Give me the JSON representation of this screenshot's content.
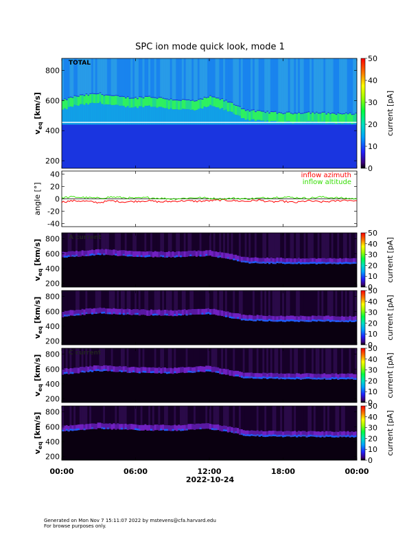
{
  "title": "SPC ion mode quick look, mode 1",
  "chart_data": [
    {
      "type": "heatmap",
      "panel_label": "TOTAL",
      "ylabel_main": "v",
      "ylabel_sub": "eq",
      "ylabel_unit": " [km/s]",
      "ylim": [
        150,
        880
      ],
      "y_ticks": [
        200,
        400,
        600,
        800
      ],
      "colorbar": {
        "label": "current [pA]",
        "range": [
          0,
          50
        ],
        "ticks": [
          0,
          10,
          20,
          30,
          40,
          50
        ]
      },
      "peak_velocity_profile": [
        {
          "hour": 0,
          "v": 560
        },
        {
          "hour": 1,
          "v": 590
        },
        {
          "hour": 2,
          "v": 600
        },
        {
          "hour": 3,
          "v": 610
        },
        {
          "hour": 4,
          "v": 595
        },
        {
          "hour": 5,
          "v": 585
        },
        {
          "hour": 6,
          "v": 580
        },
        {
          "hour": 7,
          "v": 590
        },
        {
          "hour": 8,
          "v": 580
        },
        {
          "hour": 9,
          "v": 570
        },
        {
          "hour": 10,
          "v": 565
        },
        {
          "hour": 11,
          "v": 560
        },
        {
          "hour": 12,
          "v": 590
        },
        {
          "hour": 13,
          "v": 570
        },
        {
          "hour": 14,
          "v": 540
        },
        {
          "hour": 15,
          "v": 500
        },
        {
          "hour": 16,
          "v": 490
        },
        {
          "hour": 17,
          "v": 485
        },
        {
          "hour": 18,
          "v": 480
        },
        {
          "hour": 19,
          "v": 480
        },
        {
          "hour": 20,
          "v": 485
        },
        {
          "hour": 21,
          "v": 480
        },
        {
          "hour": 22,
          "v": 478
        },
        {
          "hour": 23,
          "v": 475
        },
        {
          "hour": 24,
          "v": 475
        }
      ],
      "gap_line_v": 455
    },
    {
      "type": "line",
      "ylabel": "angle [°]",
      "ylim": [
        -45,
        45
      ],
      "y_ticks": [
        -40,
        -20,
        0,
        20,
        40
      ],
      "legend": [
        "inflow azimuth",
        "inflow altitude"
      ],
      "series": [
        {
          "name": "inflow azimuth",
          "color": "#ff0000",
          "values": [
            {
              "hour": 0,
              "angle": -5
            },
            {
              "hour": 1,
              "angle": -3
            },
            {
              "hour": 2,
              "angle": -4
            },
            {
              "hour": 3,
              "angle": -6
            },
            {
              "hour": 4,
              "angle": -3
            },
            {
              "hour": 5,
              "angle": -5
            },
            {
              "hour": 6,
              "angle": -4
            },
            {
              "hour": 7,
              "angle": -3
            },
            {
              "hour": 8,
              "angle": -5
            },
            {
              "hour": 9,
              "angle": -4
            },
            {
              "hour": 10,
              "angle": -3
            },
            {
              "hour": 11,
              "angle": -4
            },
            {
              "hour": 12,
              "angle": -3
            },
            {
              "hour": 13,
              "angle": -2
            },
            {
              "hour": 14,
              "angle": -3
            },
            {
              "hour": 15,
              "angle": -4
            },
            {
              "hour": 16,
              "angle": -2
            },
            {
              "hour": 17,
              "angle": -5
            },
            {
              "hour": 18,
              "angle": -4
            },
            {
              "hour": 19,
              "angle": -6
            },
            {
              "hour": 20,
              "angle": -3
            },
            {
              "hour": 21,
              "angle": -5
            },
            {
              "hour": 22,
              "angle": -4
            },
            {
              "hour": 23,
              "angle": -2
            },
            {
              "hour": 24,
              "angle": -3
            }
          ]
        },
        {
          "name": "inflow altitude",
          "color": "#33dd00",
          "values": [
            {
              "hour": 0,
              "angle": 2
            },
            {
              "hour": 1,
              "angle": 3
            },
            {
              "hour": 2,
              "angle": 2
            },
            {
              "hour": 3,
              "angle": 1
            },
            {
              "hour": 4,
              "angle": 3
            },
            {
              "hour": 5,
              "angle": 2
            },
            {
              "hour": 6,
              "angle": 1
            },
            {
              "hour": 7,
              "angle": 2
            },
            {
              "hour": 8,
              "angle": 1
            },
            {
              "hour": 9,
              "angle": 0
            },
            {
              "hour": 10,
              "angle": 1
            },
            {
              "hour": 11,
              "angle": 2
            },
            {
              "hour": 12,
              "angle": 1
            },
            {
              "hour": 13,
              "angle": 0
            },
            {
              "hour": 14,
              "angle": 1
            },
            {
              "hour": 15,
              "angle": 0
            },
            {
              "hour": 16,
              "angle": 1
            },
            {
              "hour": 17,
              "angle": 2
            },
            {
              "hour": 18,
              "angle": 3
            },
            {
              "hour": 19,
              "angle": 2
            },
            {
              "hour": 20,
              "angle": 1
            },
            {
              "hour": 21,
              "angle": 3
            },
            {
              "hour": 22,
              "angle": 2
            },
            {
              "hour": 23,
              "angle": 1
            },
            {
              "hour": 24,
              "angle": 0
            }
          ]
        }
      ]
    },
    {
      "type": "heatmap",
      "panel_label": "A current",
      "ylabel_main": "v",
      "ylabel_sub": "eq",
      "ylabel_unit": " [km/s]",
      "ylim": [
        150,
        880
      ],
      "y_ticks": [
        200,
        400,
        600,
        800
      ],
      "colorbar": {
        "label": "current [pA]",
        "range": [
          0,
          50
        ],
        "ticks": [
          0,
          10,
          20,
          30,
          40,
          50
        ]
      },
      "peak_velocity_profile": [
        {
          "hour": 0,
          "v": 560
        },
        {
          "hour": 3,
          "v": 600
        },
        {
          "hour": 6,
          "v": 575
        },
        {
          "hour": 9,
          "v": 565
        },
        {
          "hour": 12,
          "v": 585
        },
        {
          "hour": 14,
          "v": 530
        },
        {
          "hour": 15,
          "v": 490
        },
        {
          "hour": 18,
          "v": 480
        },
        {
          "hour": 21,
          "v": 478
        },
        {
          "hour": 24,
          "v": 475
        }
      ]
    },
    {
      "type": "heatmap",
      "panel_label": "",
      "ylabel_main": "v",
      "ylabel_sub": "eq",
      "ylabel_unit": " [km/s]",
      "ylim": [
        150,
        880
      ],
      "y_ticks": [
        200,
        400,
        600,
        800
      ],
      "colorbar": {
        "label": "current [pA]",
        "range": [
          0,
          50
        ],
        "ticks": [
          0,
          10,
          20,
          30,
          40,
          50
        ]
      },
      "peak_velocity_profile": [
        {
          "hour": 0,
          "v": 540
        },
        {
          "hour": 3,
          "v": 590
        },
        {
          "hour": 6,
          "v": 565
        },
        {
          "hour": 9,
          "v": 555
        },
        {
          "hour": 12,
          "v": 580
        },
        {
          "hour": 14,
          "v": 520
        },
        {
          "hour": 15,
          "v": 490
        },
        {
          "hour": 18,
          "v": 480
        },
        {
          "hour": 21,
          "v": 478
        },
        {
          "hour": 24,
          "v": 475
        }
      ]
    },
    {
      "type": "heatmap",
      "panel_label": "C current",
      "ylabel_main": "v",
      "ylabel_sub": "eq",
      "ylabel_unit": " [km/s]",
      "ylim": [
        150,
        880
      ],
      "y_ticks": [
        200,
        400,
        600,
        800
      ],
      "colorbar": {
        "label": "current [pA]",
        "range": [
          0,
          50
        ],
        "ticks": [
          0,
          10,
          20,
          30,
          40,
          50
        ]
      },
      "peak_velocity_profile": [
        {
          "hour": 0,
          "v": 540
        },
        {
          "hour": 3,
          "v": 590
        },
        {
          "hour": 6,
          "v": 565
        },
        {
          "hour": 9,
          "v": 555
        },
        {
          "hour": 12,
          "v": 580
        },
        {
          "hour": 14,
          "v": 520
        },
        {
          "hour": 15,
          "v": 490
        },
        {
          "hour": 18,
          "v": 480
        },
        {
          "hour": 21,
          "v": 478
        },
        {
          "hour": 24,
          "v": 475
        }
      ]
    },
    {
      "type": "heatmap",
      "panel_label": "",
      "ylabel_main": "v",
      "ylabel_sub": "eq",
      "ylabel_unit": " [km/s]",
      "ylim": [
        150,
        880
      ],
      "y_ticks": [
        200,
        400,
        600,
        800
      ],
      "colorbar": {
        "label": "current [pA]",
        "range": [
          0,
          50
        ],
        "ticks": [
          0,
          10,
          20,
          30,
          40,
          50
        ]
      },
      "peak_velocity_profile": [
        {
          "hour": 0,
          "v": 550
        },
        {
          "hour": 3,
          "v": 590
        },
        {
          "hour": 6,
          "v": 570
        },
        {
          "hour": 9,
          "v": 560
        },
        {
          "hour": 12,
          "v": 585
        },
        {
          "hour": 14,
          "v": 530
        },
        {
          "hour": 15,
          "v": 490
        },
        {
          "hour": 18,
          "v": 480
        },
        {
          "hour": 21,
          "v": 478
        },
        {
          "hour": 24,
          "v": 475
        }
      ]
    }
  ],
  "x_axis": {
    "ticks": [
      "00:00",
      "06:00",
      "12:00",
      "18:00",
      "00:00"
    ],
    "tick_hours": [
      0,
      6,
      12,
      18,
      24
    ],
    "xlabel": "2022-10-24",
    "range_hours": [
      0,
      24
    ]
  },
  "footer": {
    "line1": "Generated on Mon Nov  7 15:11:07 2022 by mstevens@cfa.harvard.edu",
    "line2": "For browse purposes only."
  }
}
